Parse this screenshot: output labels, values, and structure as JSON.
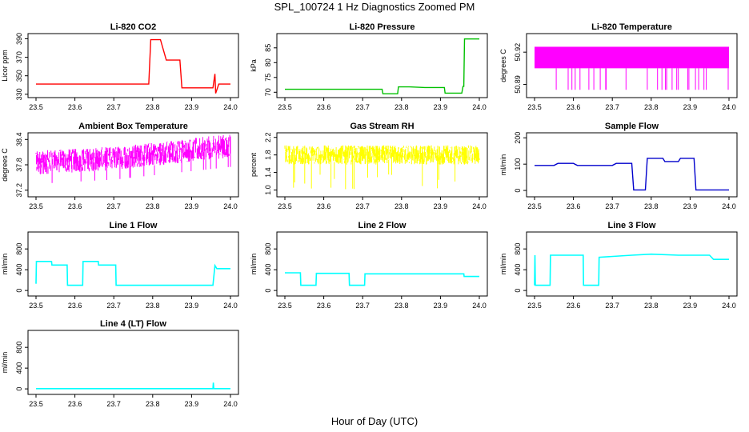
{
  "title": "SPL_100724  1 Hz Diagnostics Zoomed PM",
  "xlabel": "Hour of Day (UTC)",
  "chart_data": [
    {
      "type": "line",
      "title": "Li-820 CO2",
      "ylabel": "Licor ppm",
      "color": "#ff0000",
      "xlim": [
        23.5,
        24.0
      ],
      "ylim": [
        329,
        393
      ],
      "x_ticks": [
        "23.5",
        "23.6",
        "23.7",
        "23.8",
        "23.9",
        "24.0"
      ],
      "y_ticks": [
        "330",
        "350",
        "370",
        "390"
      ],
      "series": [
        {
          "x": [
            23.5,
            23.55,
            23.6,
            23.65,
            23.7,
            23.75,
            23.79,
            23.795,
            23.82,
            23.835,
            23.84,
            23.87,
            23.875,
            23.9,
            23.955,
            23.96,
            23.962,
            23.97,
            24.0
          ],
          "y": [
            341,
            341,
            341,
            341,
            341,
            341,
            341,
            389,
            389,
            367,
            367,
            367,
            337,
            337,
            337,
            352,
            331,
            341,
            341
          ]
        }
      ]
    },
    {
      "type": "line",
      "title": "Li-820 Pressure",
      "ylabel": "kPa",
      "color": "#00c000",
      "xlim": [
        23.5,
        24.0
      ],
      "ylim": [
        69,
        89
      ],
      "x_ticks": [
        "23.5",
        "23.6",
        "23.7",
        "23.8",
        "23.9",
        "24.0"
      ],
      "y_ticks": [
        "70",
        "75",
        "80",
        "85"
      ],
      "series": [
        {
          "x": [
            23.5,
            23.75,
            23.752,
            23.79,
            23.792,
            23.82,
            23.86,
            23.91,
            23.912,
            23.955,
            23.958,
            23.96,
            23.962,
            23.97,
            23.985,
            24.0
          ],
          "y": [
            71,
            71,
            69.5,
            69.5,
            71.8,
            71.8,
            71.6,
            71.6,
            69.7,
            69.7,
            72,
            72,
            88,
            88,
            88,
            88
          ]
        }
      ]
    },
    {
      "type": "line",
      "title": "Li-820 Temperature",
      "ylabel": "degrees C",
      "color": "#ff00ff",
      "xlim": [
        23.5,
        24.0
      ],
      "ylim": [
        50.88,
        50.935
      ],
      "x_ticks": [
        "23.5",
        "23.6",
        "23.7",
        "23.8",
        "23.9",
        "24.0"
      ],
      "y_ticks": [
        "50.89",
        "50.92"
      ],
      "series": [
        {
          "x": [
            23.5,
            24.0
          ],
          "y": [
            50.905,
            50.905
          ]
        }
      ]
    },
    {
      "type": "line",
      "title": "Ambient Box Temperature",
      "ylabel": "degrees C",
      "color": "#ff00ff",
      "xlim": [
        23.5,
        24.0
      ],
      "ylim": [
        37.1,
        38.5
      ],
      "x_ticks": [
        "23.5",
        "23.6",
        "23.7",
        "23.8",
        "23.9",
        "24.0"
      ],
      "y_ticks": [
        "37.2",
        "37.8",
        "38.4"
      ],
      "series": [
        {
          "x": [
            23.5,
            23.6,
            23.7,
            23.8,
            23.9,
            24.0
          ],
          "y": [
            37.85,
            37.9,
            37.95,
            38.05,
            38.15,
            38.25
          ]
        }
      ]
    },
    {
      "type": "line",
      "title": "Gas Stream RH",
      "ylabel": "percent",
      "color": "#ffff00",
      "xlim": [
        23.5,
        24.0
      ],
      "ylim": [
        0.9,
        2.25
      ],
      "x_ticks": [
        "23.5",
        "23.6",
        "23.7",
        "23.8",
        "23.9",
        "24.0"
      ],
      "y_ticks": [
        "1.0",
        "1.4",
        "1.8",
        "2.2"
      ],
      "series": [
        {
          "x": [
            23.5,
            24.0
          ],
          "y": [
            1.8,
            1.8
          ]
        }
      ]
    },
    {
      "type": "line",
      "title": "Sample Flow",
      "ylabel": "ml/min",
      "color": "#0000cc",
      "xlim": [
        23.5,
        24.0
      ],
      "ylim": [
        -15,
        210
      ],
      "x_ticks": [
        "23.5",
        "23.6",
        "23.7",
        "23.8",
        "23.9",
        "24.0"
      ],
      "y_ticks": [
        "0",
        "100",
        "200"
      ],
      "series": [
        {
          "x": [
            23.5,
            23.55,
            23.56,
            23.6,
            23.61,
            23.7,
            23.71,
            23.75,
            23.755,
            23.785,
            23.79,
            23.83,
            23.835,
            23.87,
            23.875,
            23.91,
            23.915,
            24.0
          ],
          "y": [
            95,
            95,
            103,
            103,
            95,
            95,
            103,
            103,
            2,
            2,
            122,
            122,
            110,
            110,
            122,
            122,
            2,
            2
          ]
        }
      ]
    },
    {
      "type": "line",
      "title": "Line 1 Flow",
      "ylabel": "ml/min",
      "color": "#00ffff",
      "xlim": [
        23.5,
        24.0
      ],
      "ylim": [
        -60,
        1080
      ],
      "x_ticks": [
        "23.5",
        "23.6",
        "23.7",
        "23.8",
        "23.9",
        "24.0"
      ],
      "y_ticks": [
        "0",
        "400",
        "800"
      ],
      "series": [
        {
          "x": [
            23.5,
            23.501,
            23.54,
            23.541,
            23.58,
            23.581,
            23.62,
            23.621,
            23.66,
            23.661,
            23.705,
            23.706,
            23.955,
            23.96,
            23.965,
            24.0
          ],
          "y": [
            130,
            560,
            560,
            490,
            490,
            100,
            100,
            560,
            560,
            490,
            490,
            100,
            100,
            480,
            420,
            420
          ]
        }
      ]
    },
    {
      "type": "line",
      "title": "Line 2 Flow",
      "ylabel": "ml/min",
      "color": "#00ffff",
      "xlim": [
        23.5,
        24.0
      ],
      "ylim": [
        -60,
        1080
      ],
      "x_ticks": [
        "23.5",
        "23.6",
        "23.7",
        "23.8",
        "23.9",
        "24.0"
      ],
      "y_ticks": [
        "0",
        "400",
        "800"
      ],
      "series": [
        {
          "x": [
            23.5,
            23.54,
            23.541,
            23.58,
            23.581,
            23.665,
            23.666,
            23.705,
            23.706,
            23.96,
            23.961,
            24.0
          ],
          "y": [
            340,
            340,
            100,
            100,
            330,
            330,
            100,
            100,
            320,
            320,
            270,
            270
          ]
        }
      ]
    },
    {
      "type": "line",
      "title": "Line 3 Flow",
      "ylabel": "ml/min",
      "color": "#00ffff",
      "xlim": [
        23.5,
        24.0
      ],
      "ylim": [
        -60,
        1080
      ],
      "x_ticks": [
        "23.5",
        "23.6",
        "23.7",
        "23.8",
        "23.9",
        "24.0"
      ],
      "y_ticks": [
        "0",
        "400",
        "800"
      ],
      "series": [
        {
          "x": [
            23.5,
            23.501,
            23.502,
            23.54,
            23.541,
            23.625,
            23.626,
            23.665,
            23.666,
            23.75,
            23.8,
            23.87,
            23.95,
            23.96,
            23.965,
            24.0
          ],
          "y": [
            100,
            680,
            100,
            100,
            680,
            680,
            100,
            100,
            640,
            680,
            700,
            680,
            680,
            600,
            600,
            600
          ]
        }
      ]
    },
    {
      "type": "line",
      "title": "Line 4 (LT) Flow",
      "ylabel": "ml/min",
      "color": "#00ffff",
      "xlim": [
        23.5,
        24.0
      ],
      "ylim": [
        -60,
        1080
      ],
      "x_ticks": [
        "23.5",
        "23.6",
        "23.7",
        "23.8",
        "23.9",
        "24.0"
      ],
      "y_ticks": [
        "0",
        "400",
        "800"
      ],
      "series": [
        {
          "x": [
            23.5,
            23.955,
            23.956,
            23.957,
            23.958,
            24.0
          ],
          "y": [
            5,
            5,
            120,
            10,
            5,
            5
          ]
        }
      ]
    }
  ]
}
